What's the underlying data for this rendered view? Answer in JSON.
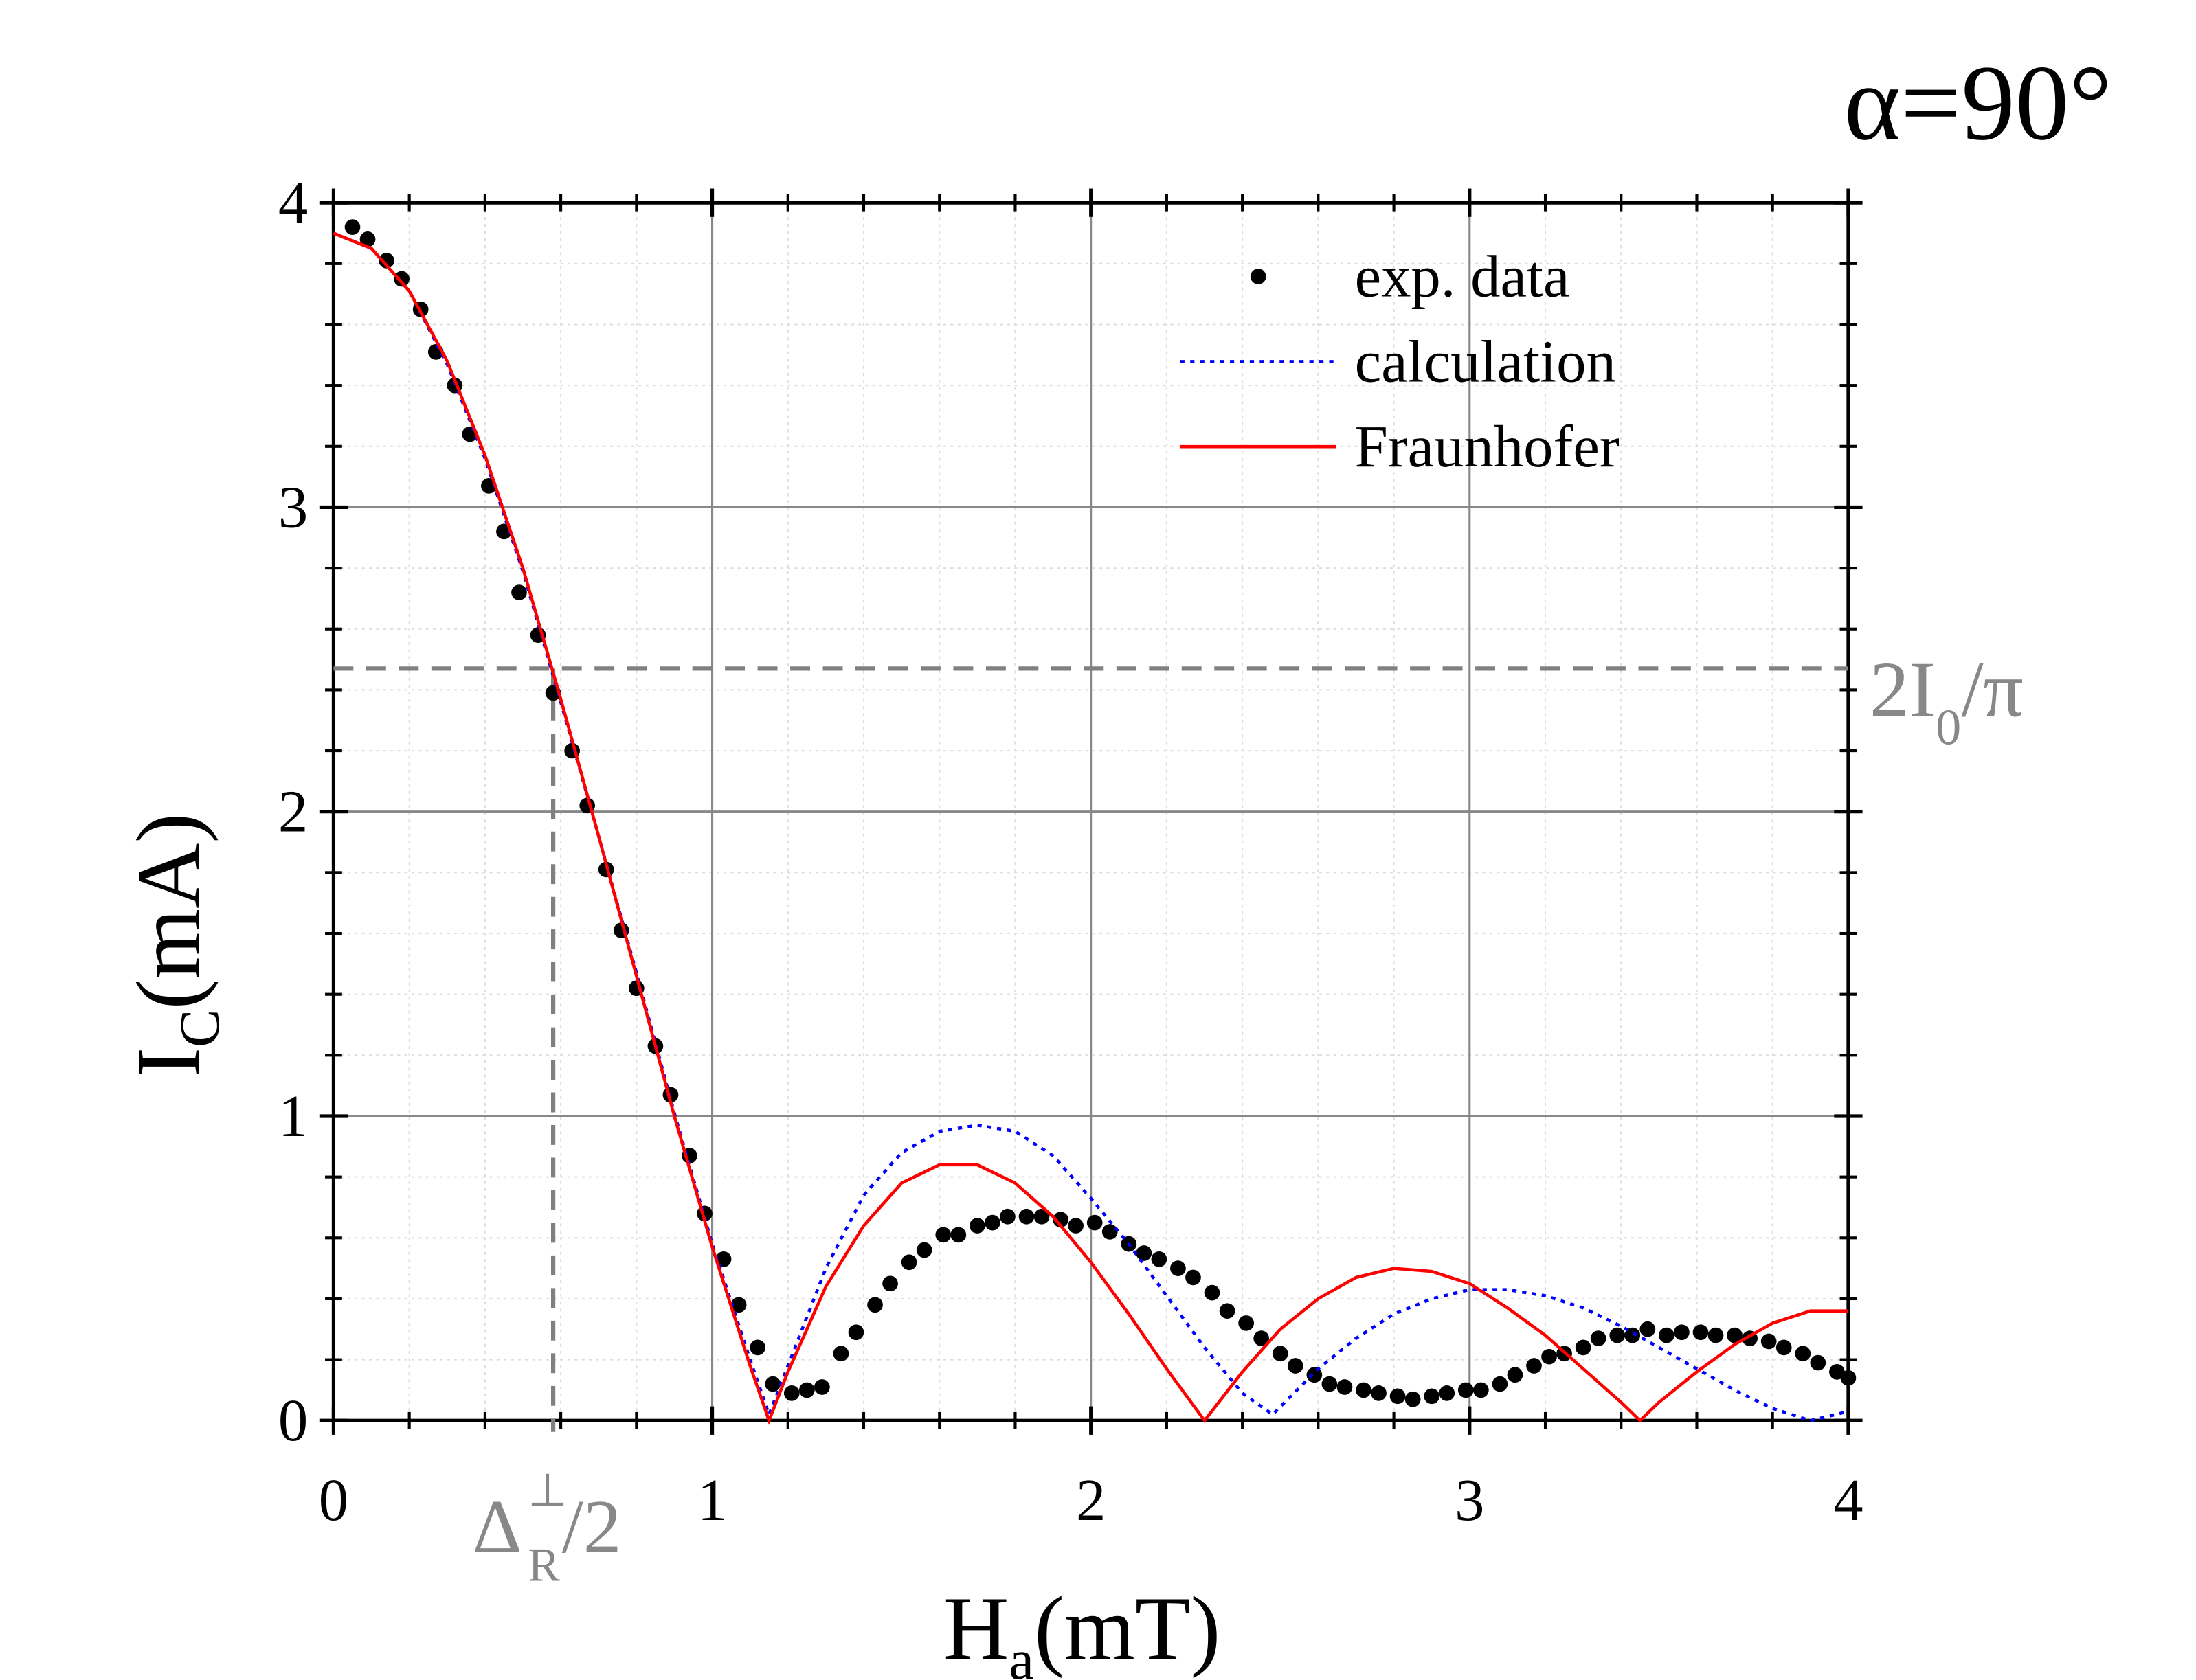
{
  "chart_data": {
    "type": "line",
    "title": "α=90°",
    "xlabel": {
      "text": "H",
      "sub": "a",
      "after": "(mT)"
    },
    "ylabel": {
      "text": "I",
      "sub": "C",
      "after": "(mA)"
    },
    "xlim": [
      0,
      4
    ],
    "ylim": [
      0,
      4
    ],
    "xticks": [
      0,
      1,
      2,
      3,
      4
    ],
    "yticks": [
      0,
      1,
      2,
      3,
      4
    ],
    "grid": true,
    "legend": "upper right",
    "hline": 2.47,
    "vline": 0.58,
    "hline_label": {
      "text": "2I",
      "sub": "0",
      "after": "/π"
    },
    "vline_label": {
      "text": "Δ",
      "sup": "⊥",
      "sub": "R",
      "after": "/2"
    },
    "series": [
      {
        "name": "exp. data",
        "style": "markers",
        "color": "#000000",
        "x": [
          0.05,
          0.09,
          0.14,
          0.18,
          0.23,
          0.27,
          0.32,
          0.36,
          0.41,
          0.45,
          0.49,
          0.54,
          0.58,
          0.63,
          0.67,
          0.72,
          0.76,
          0.8,
          0.85,
          0.89,
          0.94,
          0.98,
          1.03,
          1.07,
          1.12,
          1.16,
          1.21,
          1.25,
          1.29,
          1.34,
          1.38,
          1.43,
          1.47,
          1.52,
          1.56,
          1.61,
          1.65,
          1.7,
          1.74,
          1.78,
          1.83,
          1.87,
          1.92,
          1.96,
          2.01,
          2.05,
          2.1,
          2.14,
          2.18,
          2.23,
          2.27,
          2.32,
          2.36,
          2.41,
          2.45,
          2.5,
          2.54,
          2.59,
          2.63,
          2.67,
          2.72,
          2.76,
          2.81,
          2.85,
          2.9,
          2.94,
          2.99,
          3.03,
          3.08,
          3.12,
          3.17,
          3.21,
          3.25,
          3.3,
          3.34,
          3.39,
          3.43,
          3.47,
          3.52,
          3.56,
          3.61,
          3.65,
          3.7,
          3.74,
          3.79,
          3.83,
          3.88,
          3.92,
          3.97,
          4.0
        ],
        "values": [
          3.92,
          3.88,
          3.81,
          3.75,
          3.65,
          3.51,
          3.4,
          3.24,
          3.07,
          2.92,
          2.72,
          2.58,
          2.39,
          2.2,
          2.02,
          1.81,
          1.61,
          1.42,
          1.23,
          1.07,
          0.87,
          0.68,
          0.53,
          0.38,
          0.24,
          0.12,
          0.09,
          0.1,
          0.11,
          0.22,
          0.29,
          0.38,
          0.45,
          0.52,
          0.56,
          0.61,
          0.61,
          0.64,
          0.65,
          0.67,
          0.67,
          0.67,
          0.66,
          0.64,
          0.65,
          0.62,
          0.58,
          0.55,
          0.53,
          0.5,
          0.47,
          0.42,
          0.36,
          0.32,
          0.27,
          0.22,
          0.18,
          0.15,
          0.12,
          0.11,
          0.1,
          0.09,
          0.08,
          0.07,
          0.08,
          0.09,
          0.1,
          0.1,
          0.12,
          0.15,
          0.18,
          0.21,
          0.22,
          0.24,
          0.27,
          0.28,
          0.28,
          0.3,
          0.28,
          0.29,
          0.29,
          0.28,
          0.28,
          0.27,
          0.26,
          0.24,
          0.22,
          0.19,
          0.16,
          0.14
        ]
      },
      {
        "name": "calculation",
        "style": "dotted",
        "color": "#0000ff",
        "x": [
          0,
          0.1,
          0.2,
          0.3,
          0.4,
          0.5,
          0.6,
          0.7,
          0.8,
          0.9,
          1.0,
          1.1,
          1.15,
          1.2,
          1.3,
          1.4,
          1.5,
          1.6,
          1.7,
          1.8,
          1.9,
          2.0,
          2.1,
          2.2,
          2.3,
          2.4,
          2.48,
          2.6,
          2.7,
          2.8,
          2.9,
          3.0,
          3.1,
          3.2,
          3.3,
          3.4,
          3.5,
          3.6,
          3.7,
          3.8,
          3.9,
          4.0
        ],
        "values": [
          3.9,
          3.85,
          3.71,
          3.47,
          3.16,
          2.79,
          2.36,
          1.92,
          1.47,
          1.01,
          0.58,
          0.2,
          0.02,
          0.18,
          0.5,
          0.74,
          0.88,
          0.95,
          0.97,
          0.95,
          0.87,
          0.73,
          0.58,
          0.41,
          0.24,
          0.09,
          0.02,
          0.17,
          0.27,
          0.35,
          0.4,
          0.43,
          0.43,
          0.41,
          0.37,
          0.31,
          0.24,
          0.17,
          0.1,
          0.04,
          0.0,
          0.03
        ]
      },
      {
        "name": "Fraunhofer",
        "style": "solid",
        "color": "#ff0000",
        "x": [
          0,
          0.1,
          0.2,
          0.3,
          0.4,
          0.5,
          0.6,
          0.7,
          0.8,
          0.9,
          1.0,
          1.1,
          1.15,
          1.2,
          1.3,
          1.4,
          1.5,
          1.6,
          1.7,
          1.8,
          1.9,
          2.0,
          2.1,
          2.2,
          2.3,
          2.4,
          2.5,
          2.6,
          2.7,
          2.8,
          2.9,
          3.0,
          3.1,
          3.2,
          3.3,
          3.4,
          3.45,
          3.5,
          3.6,
          3.7,
          3.8,
          3.9,
          4.0
        ],
        "values": [
          3.9,
          3.85,
          3.71,
          3.48,
          3.17,
          2.8,
          2.37,
          1.92,
          1.46,
          1.0,
          0.57,
          0.18,
          0,
          0.16,
          0.44,
          0.64,
          0.78,
          0.84,
          0.84,
          0.78,
          0.67,
          0.52,
          0.35,
          0.17,
          0,
          0.16,
          0.3,
          0.4,
          0.47,
          0.5,
          0.49,
          0.45,
          0.37,
          0.28,
          0.17,
          0.06,
          0,
          0.06,
          0.16,
          0.25,
          0.32,
          0.36,
          0.36
        ]
      }
    ]
  }
}
